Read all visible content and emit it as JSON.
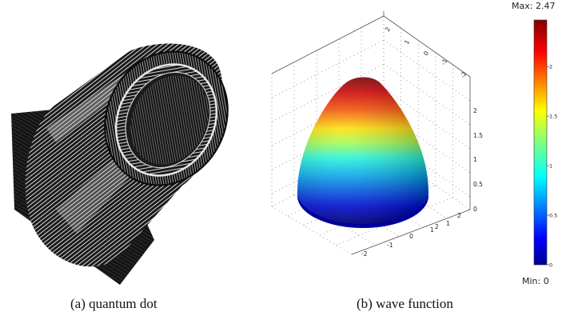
{
  "figure": {
    "caption_a": "(a) quantum dot",
    "caption_b": "(b) wave function"
  },
  "colorbar": {
    "max_label": "Max: 2.47",
    "min_label": "Min: 0",
    "ticks": [
      "0",
      "0.5",
      "1",
      "1.5",
      "2"
    ],
    "tick_values": [
      0,
      0.5,
      1,
      1.5,
      2
    ],
    "range": [
      0,
      2.47
    ],
    "colormap": "jet"
  },
  "plot3d": {
    "z_ticks": [
      "0",
      "0.5",
      "1",
      "1.5",
      "2"
    ],
    "x_ticks": [
      "-2",
      "-1",
      "0",
      "1",
      "2"
    ],
    "y_ticks": [
      "2",
      "1",
      "0",
      "-1",
      "-2"
    ],
    "top_ticks": [
      "2",
      "1",
      "0",
      "-1",
      "-2"
    ]
  },
  "colors": {
    "mesh_dark": "#111111",
    "mesh_light": "#e6e6e6",
    "background": "#ffffff"
  }
}
